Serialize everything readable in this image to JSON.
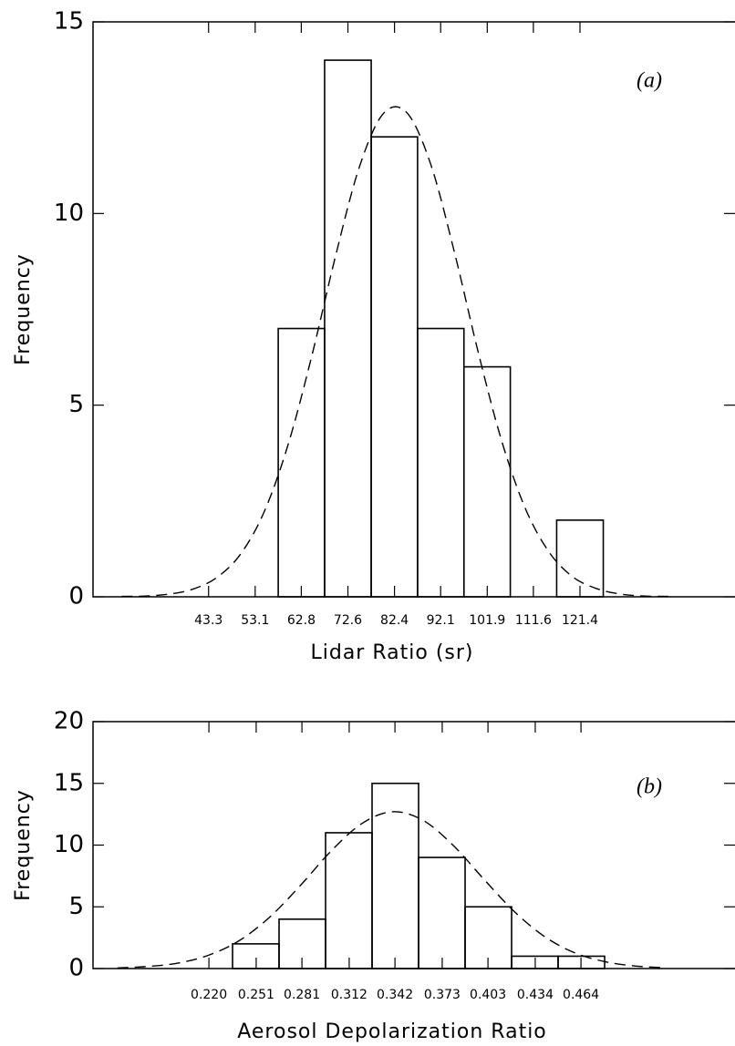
{
  "chart_data": [
    {
      "type": "histogram",
      "annotation": "(a)",
      "x_label": "Lidar Ratio (sr)",
      "y_label": "Frequency",
      "bins": [
        57.95,
        67.7,
        77.5,
        87.25,
        97.0,
        106.75,
        116.5,
        126.3
      ],
      "counts": [
        7,
        14,
        12,
        7,
        6,
        0,
        2
      ],
      "xlim": [
        19.0,
        154.0
      ],
      "xticks": [
        43.3,
        53.1,
        62.8,
        72.6,
        82.4,
        92.1,
        101.9,
        111.6,
        121.4
      ],
      "ylim": [
        0,
        15
      ],
      "yticks": [
        0,
        5,
        10,
        15
      ],
      "curve": {
        "x": [
          25,
          30,
          35,
          40,
          45,
          50,
          55,
          60,
          65,
          70,
          75,
          80,
          85,
          90,
          95,
          100,
          105,
          110,
          115,
          120,
          125,
          130,
          135,
          140
        ],
        "values": [
          0.01,
          0.02,
          0.07,
          0.2,
          0.5,
          1.11,
          2.22,
          3.96,
          6.28,
          8.89,
          11.21,
          12.6,
          12.63,
          11.29,
          8.99,
          6.38,
          4.04,
          2.28,
          1.15,
          0.51,
          0.21,
          0.07,
          0.02,
          0.01
        ]
      }
    },
    {
      "type": "histogram",
      "annotation": "(b)",
      "x_label": "Aerosol Depolarization Ratio",
      "y_label": "Frequency",
      "bins": [
        0.2355,
        0.266,
        0.2965,
        0.327,
        0.3575,
        0.388,
        0.4185,
        0.449,
        0.4795
      ],
      "counts": [
        2,
        4,
        11,
        15,
        9,
        5,
        1,
        1
      ],
      "xlim": [
        0.144,
        0.565
      ],
      "xticks": [
        {
          "value": 0.22,
          "label": "0.220"
        },
        0.251,
        0.281,
        0.312,
        0.342,
        0.373,
        0.403,
        0.434,
        0.464
      ],
      "ylim": [
        0,
        20
      ],
      "yticks": [
        0,
        5,
        10,
        15,
        20
      ],
      "curve": {
        "x": [
          0.16,
          0.18,
          0.2,
          0.22,
          0.24,
          0.26,
          0.28,
          0.3,
          0.32,
          0.34,
          0.36,
          0.38,
          0.4,
          0.42,
          0.44,
          0.46,
          0.48,
          0.5,
          0.52
        ],
        "values": [
          0.05,
          0.17,
          0.45,
          1.09,
          2.27,
          4.18,
          6.73,
          9.5,
          11.72,
          12.7,
          12.04,
          10.0,
          7.28,
          4.65,
          2.6,
          1.27,
          0.55,
          0.2,
          0.07
        ]
      }
    }
  ]
}
